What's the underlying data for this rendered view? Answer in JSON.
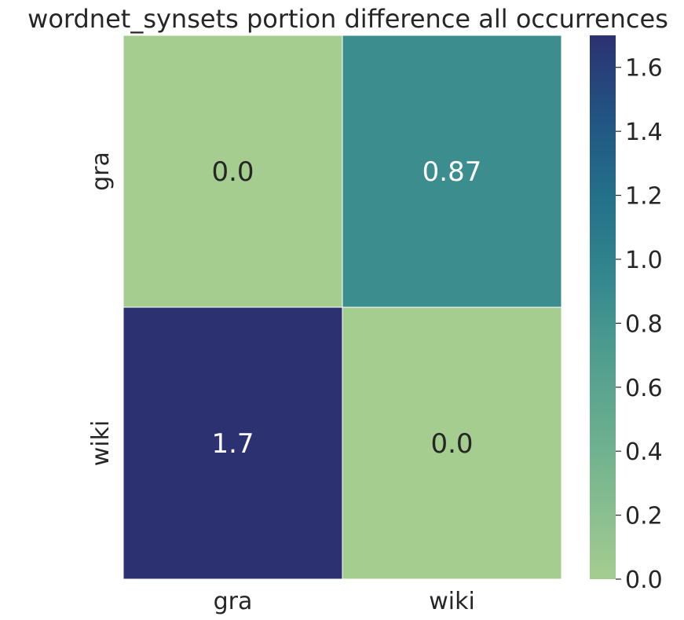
{
  "chart_data": {
    "type": "heatmap",
    "title": "wordnet_synsets portion difference all occurrences",
    "x_categories": [
      "gra",
      "wiki"
    ],
    "y_categories": [
      "gra",
      "wiki"
    ],
    "values": [
      [
        0.0,
        0.87
      ],
      [
        1.7,
        0.0
      ]
    ],
    "cell_labels": [
      [
        "0.0",
        "0.87"
      ],
      [
        "1.7",
        "0.0"
      ]
    ],
    "colorbar": {
      "vmin": 0.0,
      "vmax": 1.7,
      "ticks": [
        0.0,
        0.2,
        0.4,
        0.6,
        0.8,
        1.0,
        1.2,
        1.4,
        1.6
      ],
      "tick_labels": [
        "0.0",
        "0.2",
        "0.4",
        "0.6",
        "0.8",
        "1.0",
        "1.2",
        "1.4",
        "1.6"
      ],
      "colormap": "crest",
      "color_low": "#a5cd8f",
      "color_high": "#2c3172"
    },
    "grid": false,
    "cell_border_color": "#ffffff"
  }
}
